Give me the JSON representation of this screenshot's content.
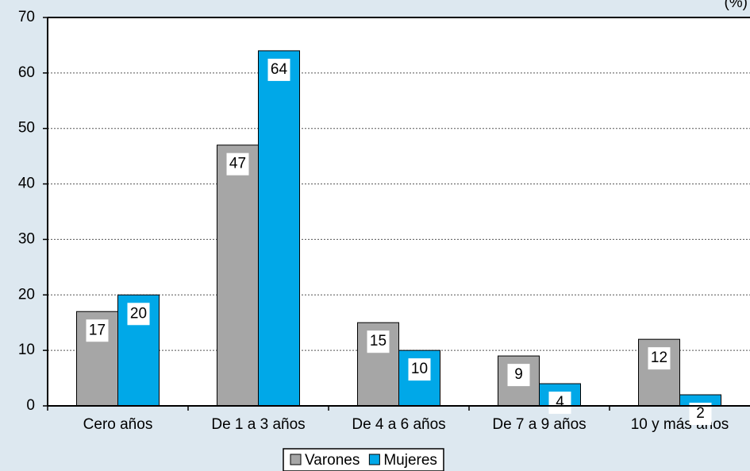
{
  "chart_data": {
    "type": "bar",
    "unit_label": "(%)",
    "categories": [
      "Cero años",
      "De 1 a 3 años",
      "De 4 a 6 años",
      "De 7 a 9 años",
      "10 y más años"
    ],
    "series": [
      {
        "name": "Varones",
        "color": "#a6a6a6",
        "values": [
          17,
          47,
          15,
          9,
          12
        ]
      },
      {
        "name": "Mujeres",
        "color": "#00a8e8",
        "values": [
          20,
          64,
          10,
          4,
          2
        ]
      }
    ],
    "ylim": [
      0,
      70
    ],
    "yticks": [
      0,
      10,
      20,
      30,
      40,
      50,
      60,
      70
    ],
    "grid": true,
    "legend": "bottom"
  }
}
